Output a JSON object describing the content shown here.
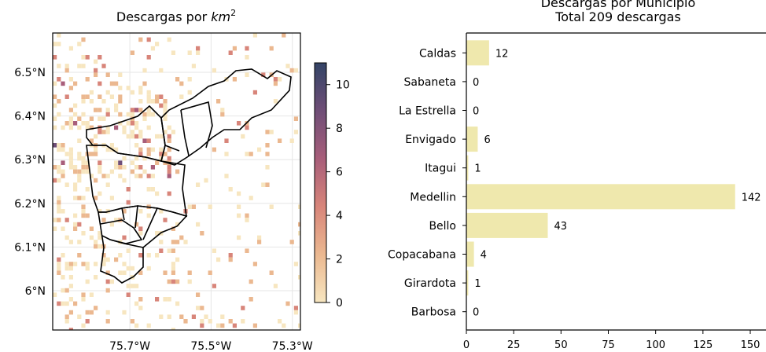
{
  "chart_data": [
    {
      "type": "heatmap",
      "title": "Descargas por km²",
      "title_prefix": "Descargas por ",
      "title_math": "km",
      "title_sup": "2",
      "x_ticks": [
        {
          "value": -75.7,
          "label": "75.7°W"
        },
        {
          "value": -75.5,
          "label": "75.5°W"
        },
        {
          "value": -75.3,
          "label": "75.3°W"
        }
      ],
      "y_ticks": [
        {
          "value": 6.5,
          "label": "6.5°N"
        },
        {
          "value": 6.4,
          "label": "6.4°N"
        },
        {
          "value": 6.3,
          "label": "6.3°N"
        },
        {
          "value": 6.2,
          "label": "6.2°N"
        },
        {
          "value": 6.1,
          "label": "6.1°N"
        },
        {
          "value": 6.0,
          "label": "6°N"
        }
      ],
      "xlim": [
        -75.89,
        -75.28
      ],
      "ylim": [
        5.91,
        6.59
      ],
      "colorbar": {
        "range": [
          0,
          11
        ],
        "ticks": [
          "0",
          "2",
          "4",
          "6",
          "8",
          "10"
        ],
        "colors": [
          "#f7e6c0",
          "#ebb890",
          "#d8857a",
          "#a85e7a",
          "#6f4e77",
          "#334466"
        ]
      },
      "grid": true
    },
    {
      "type": "bar",
      "orientation": "horizontal",
      "title": "Descargas por Municipio",
      "subtitle": "Total 209 descargas",
      "categories": [
        "Caldas",
        "Sabaneta",
        "La Estrella",
        "Envigado",
        "Itagui",
        "Medellin",
        "Bello",
        "Copacabana",
        "Girardota",
        "Barbosa"
      ],
      "values": [
        12,
        0,
        0,
        6,
        1,
        142,
        43,
        4,
        1,
        0
      ],
      "data_labels": [
        "12",
        "0",
        "0",
        "6",
        "1",
        "142",
        "43",
        "4",
        "1",
        "0"
      ],
      "x_ticks": [
        "0",
        "25",
        "50",
        "75",
        "100",
        "125",
        "150"
      ],
      "xlim": [
        0,
        152
      ],
      "bar_color": "#efe8ad"
    }
  ]
}
